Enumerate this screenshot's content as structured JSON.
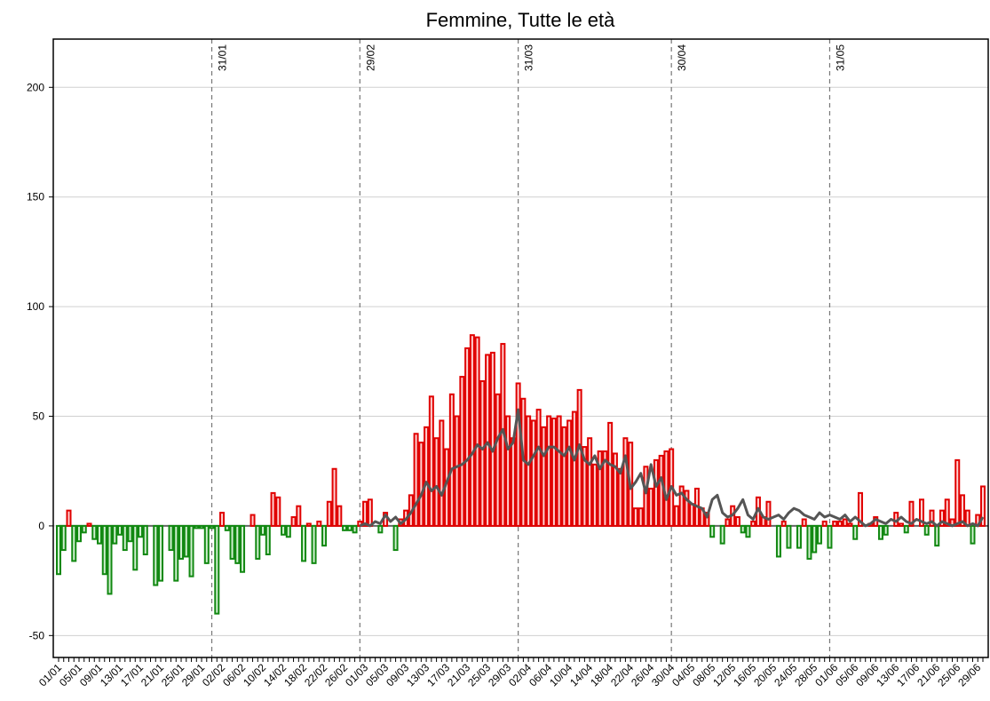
{
  "chart_data": {
    "type": "bar",
    "title": "Femmine, Tutte le età",
    "categories": [
      "01/01",
      null,
      null,
      null,
      "05/01",
      null,
      null,
      null,
      "09/01",
      null,
      null,
      null,
      "13/01",
      null,
      null,
      null,
      "17/01",
      null,
      null,
      null,
      "21/01",
      null,
      null,
      null,
      "25/01",
      null,
      null,
      null,
      "29/01",
      null,
      null,
      null,
      "02/02",
      null,
      null,
      null,
      "06/02",
      null,
      null,
      null,
      "10/02",
      null,
      null,
      null,
      "14/02",
      null,
      null,
      null,
      "18/02",
      null,
      null,
      null,
      "22/02",
      null,
      null,
      null,
      "26/02",
      null,
      null,
      null,
      "01/03",
      null,
      null,
      null,
      "05/03",
      null,
      null,
      null,
      "09/03",
      null,
      null,
      null,
      "13/03",
      null,
      null,
      null,
      "17/03",
      null,
      null,
      null,
      "21/03",
      null,
      null,
      null,
      "25/03",
      null,
      null,
      null,
      "29/03",
      null,
      null,
      null,
      "02/04",
      null,
      null,
      null,
      "06/04",
      null,
      null,
      null,
      "10/04",
      null,
      null,
      null,
      "14/04",
      null,
      null,
      null,
      "18/04",
      null,
      null,
      null,
      "22/04",
      null,
      null,
      null,
      "26/04",
      null,
      null,
      null,
      "30/04",
      null,
      null,
      null,
      "04/05",
      null,
      null,
      null,
      "08/05",
      null,
      null,
      null,
      "12/05",
      null,
      null,
      null,
      "16/05",
      null,
      null,
      null,
      "20/05",
      null,
      null,
      null,
      "24/05",
      null,
      null,
      null,
      "28/05",
      null,
      null,
      null,
      "01/06",
      null,
      null,
      null,
      "05/06",
      null,
      null,
      null,
      "09/06",
      null,
      null,
      null,
      "13/06",
      null,
      null,
      null,
      "17/06",
      null,
      null,
      null,
      "21/06",
      null,
      null,
      null,
      "25/06",
      null,
      null,
      null,
      "29/06",
      null
    ],
    "series": [
      {
        "type": "bar",
        "positive_color": "#e00000",
        "negative_color": "#118811",
        "values": [
          -22,
          -11,
          7,
          -16,
          -7,
          -3,
          1,
          -6,
          -8,
          -22,
          -31,
          -8,
          -4,
          -11,
          -7,
          -20,
          -5,
          -13,
          0,
          -27,
          -25,
          0,
          -11,
          -25,
          -15,
          -14,
          -23,
          -1,
          -1,
          -17,
          -1,
          -40,
          6,
          -2,
          -15,
          -17,
          -21,
          0,
          5,
          -15,
          -4,
          -13,
          15,
          13,
          -4,
          -5,
          4,
          9,
          -16,
          1,
          -17,
          2,
          -9,
          11,
          26,
          9,
          -2,
          -2,
          -3,
          2,
          11,
          12,
          0,
          -3,
          6,
          0,
          -11,
          3,
          7,
          14,
          42,
          38,
          45,
          59,
          40,
          48,
          35,
          60,
          50,
          68,
          81,
          87,
          86,
          66,
          78,
          79,
          60,
          83,
          50,
          40,
          65,
          58,
          50,
          48,
          53,
          45,
          50,
          49,
          50,
          45,
          48,
          52,
          62,
          36,
          40,
          28,
          34,
          34,
          47,
          33,
          26,
          40,
          38,
          8,
          8,
          27,
          17,
          30,
          32,
          34,
          35,
          9,
          18,
          16,
          10,
          17,
          8,
          6,
          -5,
          0,
          -8,
          3,
          9,
          4,
          -3,
          -5,
          2,
          13,
          4,
          11,
          0,
          -14,
          2,
          -10,
          0,
          -10,
          3,
          -15,
          -12,
          -8,
          2,
          -10,
          2,
          2,
          3,
          1,
          -6,
          15,
          0,
          1,
          4,
          -6,
          -4,
          0,
          6,
          1,
          -3,
          11,
          0,
          12,
          -4,
          7,
          -9,
          7,
          12,
          3,
          30,
          14,
          7,
          -8,
          5,
          18
        ]
      },
      {
        "type": "line",
        "color": "#555555",
        "values": [
          null,
          null,
          null,
          null,
          null,
          null,
          null,
          null,
          null,
          null,
          null,
          null,
          null,
          null,
          null,
          null,
          null,
          null,
          null,
          null,
          null,
          null,
          null,
          null,
          null,
          null,
          null,
          null,
          null,
          null,
          null,
          null,
          null,
          null,
          null,
          null,
          null,
          null,
          null,
          null,
          null,
          null,
          null,
          null,
          null,
          null,
          null,
          null,
          null,
          null,
          null,
          null,
          null,
          null,
          null,
          null,
          null,
          null,
          null,
          0,
          1,
          0,
          2,
          1,
          5,
          2,
          4,
          1,
          3,
          6,
          10,
          14,
          20,
          16,
          18,
          14,
          20,
          26,
          27,
          28,
          30,
          33,
          37,
          35,
          38,
          34,
          40,
          44,
          35,
          38,
          53,
          30,
          28,
          32,
          36,
          32,
          36,
          36,
          34,
          32,
          36,
          30,
          37,
          30,
          28,
          32,
          26,
          30,
          28,
          27,
          24,
          32,
          17,
          20,
          24,
          15,
          28,
          18,
          22,
          12,
          18,
          14,
          15,
          12,
          10,
          9,
          8,
          4,
          12,
          14,
          6,
          4,
          5,
          8,
          12,
          5,
          3,
          8,
          4,
          3,
          4,
          5,
          3,
          6,
          8,
          7,
          5,
          4,
          3,
          6,
          4,
          5,
          4,
          3,
          5,
          2,
          4,
          2,
          0,
          1,
          3,
          2,
          1,
          3,
          2,
          4,
          2,
          1,
          3,
          2,
          1,
          2,
          0,
          2,
          1,
          0,
          1,
          2,
          0,
          1,
          0,
          4
        ]
      }
    ],
    "ylim": [
      -60,
      222
    ],
    "yticks": [
      -50,
      0,
      50,
      100,
      150,
      200
    ],
    "grid": true,
    "vlines": [
      {
        "at": 30,
        "label": "31/01"
      },
      {
        "at": 59,
        "label": "29/02"
      },
      {
        "at": 90,
        "label": "31/03"
      },
      {
        "at": 120,
        "label": "30/04"
      },
      {
        "at": 151,
        "label": "31/05"
      }
    ]
  }
}
